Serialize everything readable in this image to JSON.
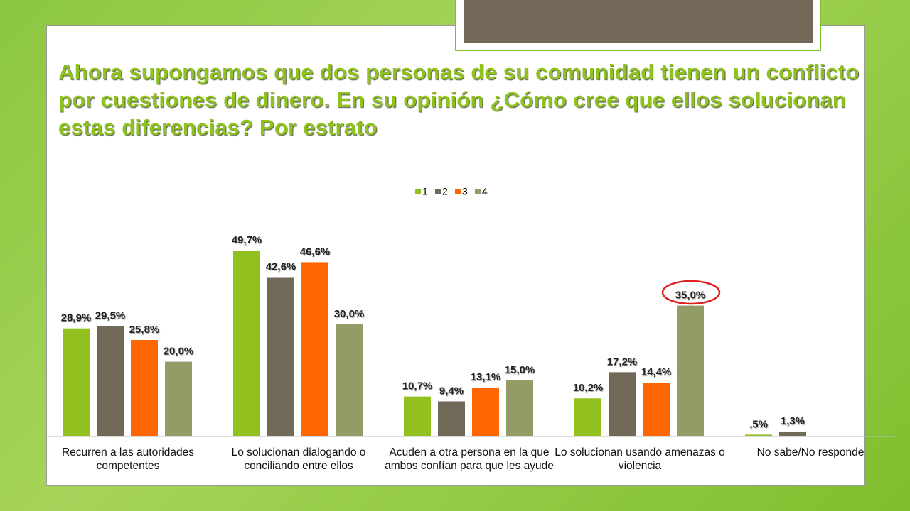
{
  "chart_data": {
    "type": "bar",
    "title": "Ahora supongamos que dos personas de su comunidad tienen un conflicto por cuestiones de dinero. En su opinión ¿Cómo cree que ellos solucionan estas diferencias? Por estrato",
    "categories": [
      "Recurren a las autoridades competentes",
      "Lo solucionan dialogando o conciliando entre ellos",
      "Acuden a otra persona en la que ambos confían para que les ayude",
      "Lo solucionan usando amenazas  o violencia",
      "No sabe/No responde"
    ],
    "series": [
      {
        "name": "1",
        "color": "#92c01f",
        "values": [
          28.9,
          49.7,
          10.7,
          10.2,
          0.5
        ],
        "value_labels": [
          "28,9%",
          "49,7%",
          "10,7%",
          "10,2%",
          ",5%"
        ]
      },
      {
        "name": "2",
        "color": "#726a58",
        "values": [
          29.5,
          42.6,
          9.4,
          17.2,
          1.3
        ],
        "value_labels": [
          "29,5%",
          "42,6%",
          "9,4%",
          "17,2%",
          "1,3%"
        ]
      },
      {
        "name": "3",
        "color": "#ff6600",
        "values": [
          25.8,
          46.6,
          13.1,
          14.4,
          null
        ],
        "value_labels": [
          "25,8%",
          "46,6%",
          "13,1%",
          "14,4%",
          null
        ]
      },
      {
        "name": "4",
        "color": "#939b67",
        "values": [
          20.0,
          30.0,
          15.0,
          35.0,
          null
        ],
        "value_labels": [
          "20,0%",
          "30,0%",
          "15,0%",
          "35,0%",
          null
        ]
      }
    ],
    "ylim": [
      0,
      50
    ],
    "legend": "top"
  }
}
